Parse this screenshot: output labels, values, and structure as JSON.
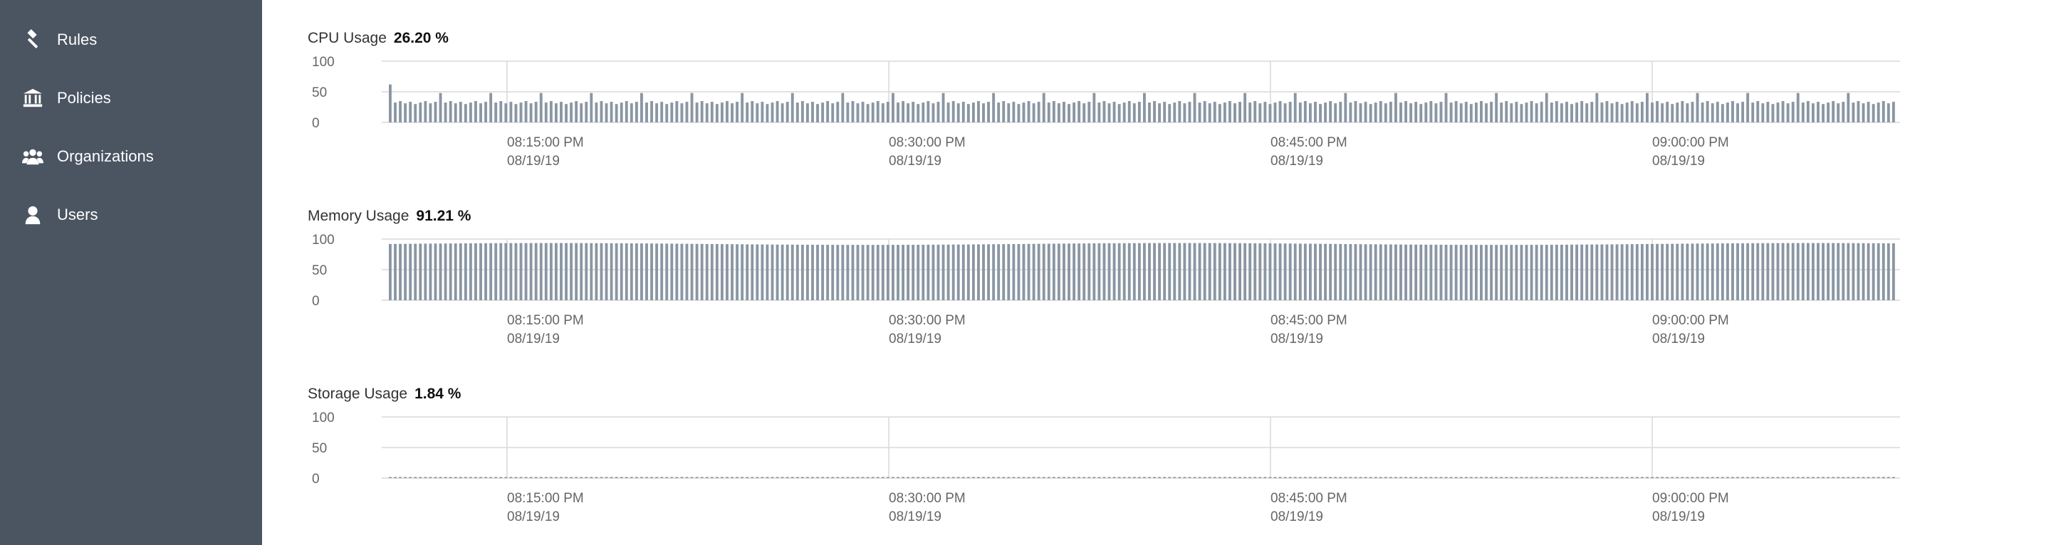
{
  "sidebar": {
    "items": [
      {
        "label": "Rules",
        "icon": "gavel-icon"
      },
      {
        "label": "Policies",
        "icon": "bank-icon"
      },
      {
        "label": "Organizations",
        "icon": "group-icon"
      },
      {
        "label": "Users",
        "icon": "user-icon"
      }
    ]
  },
  "colors": {
    "sidebar_bg": "#4b5562",
    "bar": "#8a96a3",
    "grid": "#d9d9d9"
  },
  "metrics": [
    {
      "label": "CPU Usage",
      "value": "26.20 %"
    },
    {
      "label": "Memory Usage",
      "value": "91.21 %"
    },
    {
      "label": "Storage Usage",
      "value": "1.84 %"
    }
  ],
  "chart_data": [
    {
      "type": "bar",
      "title": "CPU Usage",
      "ylim": [
        0,
        100
      ],
      "yticks": [
        "100",
        "50",
        "0"
      ],
      "xticks": [
        {
          "time": "08:15:00 PM",
          "date": "08/19/19"
        },
        {
          "time": "08:30:00 PM",
          "date": "08/19/19"
        },
        {
          "time": "08:45:00 PM",
          "date": "08/19/19"
        },
        {
          "time": "09:00:00 PM",
          "date": "08/19/19"
        }
      ],
      "bars": 300,
      "base": 30,
      "spike_every": 10,
      "spike_value": 48,
      "first_value": 62,
      "grid": true
    },
    {
      "type": "bar",
      "title": "Memory Usage",
      "ylim": [
        0,
        100
      ],
      "yticks": [
        "100",
        "50",
        "0"
      ],
      "xticks": [
        {
          "time": "08:15:00 PM",
          "date": "08/19/19"
        },
        {
          "time": "08:30:00 PM",
          "date": "08/19/19"
        },
        {
          "time": "08:45:00 PM",
          "date": "08/19/19"
        },
        {
          "time": "09:00:00 PM",
          "date": "08/19/19"
        }
      ],
      "bars": 300,
      "base": 92,
      "grid": true
    },
    {
      "type": "bar",
      "title": "Storage Usage",
      "ylim": [
        0,
        100
      ],
      "yticks": [
        "100",
        "50",
        "0"
      ],
      "xticks": [
        {
          "time": "08:15:00 PM",
          "date": "08/19/19"
        },
        {
          "time": "08:30:00 PM",
          "date": "08/19/19"
        },
        {
          "time": "08:45:00 PM",
          "date": "08/19/19"
        },
        {
          "time": "09:00:00 PM",
          "date": "08/19/19"
        }
      ],
      "bars": 300,
      "base": 1.84,
      "grid": true
    }
  ]
}
